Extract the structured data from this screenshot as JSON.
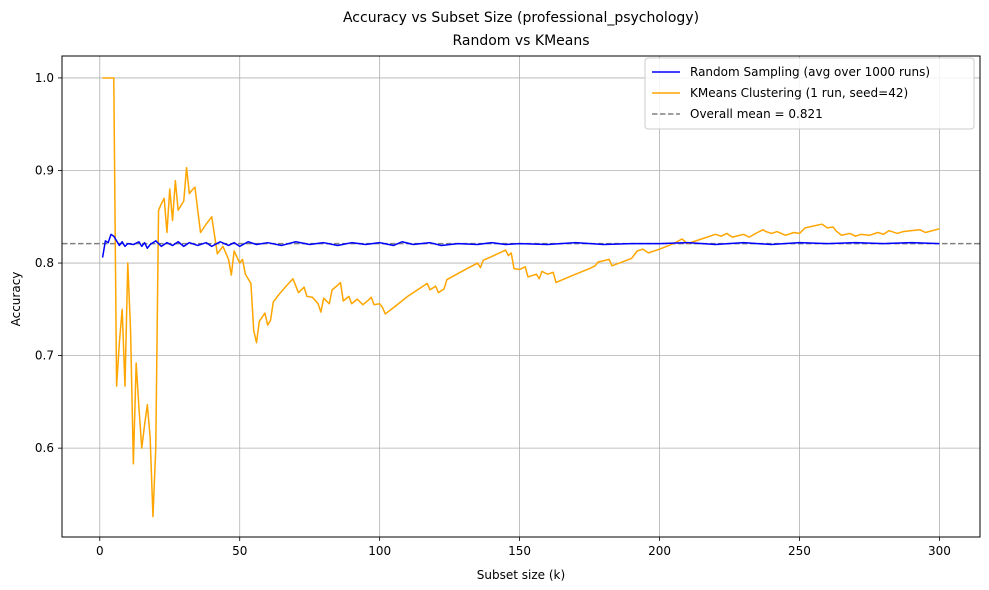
{
  "chart_data": {
    "type": "line",
    "title": "Accuracy vs Subset Size (professional_psychology)",
    "subtitle": "Random vs KMeans",
    "xlabel": "Subset size (k)",
    "ylabel": "Accuracy",
    "xlim": [
      -13.5,
      314.5
    ],
    "ylim": [
      0.504,
      1.0237
    ],
    "xticks": [
      0,
      50,
      100,
      150,
      200,
      250,
      300
    ],
    "yticks": [
      0.6,
      0.7,
      0.8,
      0.9,
      1.0
    ],
    "ytick_labels": [
      "0.6",
      "0.7",
      "0.8",
      "0.9",
      "1.0"
    ],
    "grid": true,
    "legend_position": "top-right",
    "reference_line": {
      "label": "Overall mean = 0.821",
      "y": 0.821,
      "color": "#808080",
      "style": "dashed"
    },
    "series": [
      {
        "name": "Random Sampling (avg over 1000 runs)",
        "color": "#0000ff",
        "points": [
          [
            1,
            0.806
          ],
          [
            2,
            0.824
          ],
          [
            3,
            0.822
          ],
          [
            4,
            0.831
          ],
          [
            5,
            0.829
          ],
          [
            6,
            0.824
          ],
          [
            7,
            0.819
          ],
          [
            8,
            0.823
          ],
          [
            9,
            0.818
          ],
          [
            10,
            0.821
          ],
          [
            12,
            0.82
          ],
          [
            14,
            0.823
          ],
          [
            15,
            0.818
          ],
          [
            16,
            0.822
          ],
          [
            17,
            0.816
          ],
          [
            18,
            0.82
          ],
          [
            20,
            0.824
          ],
          [
            22,
            0.818
          ],
          [
            24,
            0.822
          ],
          [
            26,
            0.819
          ],
          [
            28,
            0.823
          ],
          [
            30,
            0.818
          ],
          [
            32,
            0.822
          ],
          [
            35,
            0.819
          ],
          [
            38,
            0.822
          ],
          [
            40,
            0.818
          ],
          [
            43,
            0.823
          ],
          [
            46,
            0.819
          ],
          [
            48,
            0.822
          ],
          [
            50,
            0.818
          ],
          [
            53,
            0.823
          ],
          [
            56,
            0.82
          ],
          [
            60,
            0.822
          ],
          [
            65,
            0.819
          ],
          [
            70,
            0.823
          ],
          [
            75,
            0.82
          ],
          [
            80,
            0.822
          ],
          [
            85,
            0.819
          ],
          [
            90,
            0.822
          ],
          [
            95,
            0.82
          ],
          [
            100,
            0.822
          ],
          [
            105,
            0.819
          ],
          [
            108,
            0.823
          ],
          [
            112,
            0.82
          ],
          [
            118,
            0.822
          ],
          [
            122,
            0.819
          ],
          [
            128,
            0.821
          ],
          [
            135,
            0.82
          ],
          [
            140,
            0.822
          ],
          [
            145,
            0.82
          ],
          [
            150,
            0.821
          ],
          [
            160,
            0.82
          ],
          [
            170,
            0.822
          ],
          [
            180,
            0.82
          ],
          [
            190,
            0.821
          ],
          [
            200,
            0.821
          ],
          [
            210,
            0.822
          ],
          [
            220,
            0.82
          ],
          [
            230,
            0.822
          ],
          [
            240,
            0.82
          ],
          [
            250,
            0.822
          ],
          [
            260,
            0.821
          ],
          [
            270,
            0.822
          ],
          [
            280,
            0.821
          ],
          [
            290,
            0.822
          ],
          [
            300,
            0.821
          ]
        ]
      },
      {
        "name": "KMeans Clustering (1 run, seed=42)",
        "color": "#ffa500",
        "points": [
          [
            1,
            1.0
          ],
          [
            2,
            1.0
          ],
          [
            3,
            1.0
          ],
          [
            4,
            1.0
          ],
          [
            5,
            1.0
          ],
          [
            6,
            0.667
          ],
          [
            7,
            0.714
          ],
          [
            8,
            0.75
          ],
          [
            9,
            0.667
          ],
          [
            10,
            0.8
          ],
          [
            11,
            0.727
          ],
          [
            12,
            0.583
          ],
          [
            13,
            0.692
          ],
          [
            14,
            0.643
          ],
          [
            15,
            0.6
          ],
          [
            16,
            0.625
          ],
          [
            17,
            0.647
          ],
          [
            18,
            0.611
          ],
          [
            19,
            0.526
          ],
          [
            20,
            0.6
          ],
          [
            21,
            0.857
          ],
          [
            22,
            0.864
          ],
          [
            23,
            0.87
          ],
          [
            24,
            0.833
          ],
          [
            25,
            0.88
          ],
          [
            26,
            0.846
          ],
          [
            27,
            0.889
          ],
          [
            28,
            0.857
          ],
          [
            29,
            0.862
          ],
          [
            30,
            0.867
          ],
          [
            31,
            0.903
          ],
          [
            32,
            0.875
          ],
          [
            33,
            0.879
          ],
          [
            34,
            0.882
          ],
          [
            35,
            0.857
          ],
          [
            36,
            0.833
          ],
          [
            38,
            0.842
          ],
          [
            40,
            0.85
          ],
          [
            42,
            0.81
          ],
          [
            44,
            0.818
          ],
          [
            46,
            0.804
          ],
          [
            47,
            0.787
          ],
          [
            48,
            0.813
          ],
          [
            50,
            0.8
          ],
          [
            51,
            0.804
          ],
          [
            52,
            0.788
          ],
          [
            54,
            0.778
          ],
          [
            55,
            0.727
          ],
          [
            56,
            0.714
          ],
          [
            57,
            0.737
          ],
          [
            59,
            0.746
          ],
          [
            60,
            0.733
          ],
          [
            61,
            0.738
          ],
          [
            62,
            0.758
          ],
          [
            64,
            0.766
          ],
          [
            66,
            0.773
          ],
          [
            69,
            0.783
          ],
          [
            71,
            0.768
          ],
          [
            73,
            0.774
          ],
          [
            74,
            0.764
          ],
          [
            76,
            0.763
          ],
          [
            78,
            0.756
          ],
          [
            79,
            0.747
          ],
          [
            80,
            0.762
          ],
          [
            82,
            0.756
          ],
          [
            83,
            0.771
          ],
          [
            85,
            0.776
          ],
          [
            86,
            0.779
          ],
          [
            87,
            0.759
          ],
          [
            89,
            0.764
          ],
          [
            90,
            0.756
          ],
          [
            92,
            0.761
          ],
          [
            94,
            0.755
          ],
          [
            96,
            0.76
          ],
          [
            97,
            0.763
          ],
          [
            98,
            0.755
          ],
          [
            100,
            0.756
          ],
          [
            101,
            0.752
          ],
          [
            102,
            0.745
          ],
          [
            105,
            0.752
          ],
          [
            110,
            0.764
          ],
          [
            115,
            0.774
          ],
          [
            117,
            0.778
          ],
          [
            118,
            0.771
          ],
          [
            120,
            0.775
          ],
          [
            121,
            0.768
          ],
          [
            123,
            0.772
          ],
          [
            124,
            0.782
          ],
          [
            130,
            0.792
          ],
          [
            135,
            0.8
          ],
          [
            136,
            0.795
          ],
          [
            137,
            0.803
          ],
          [
            140,
            0.807
          ],
          [
            145,
            0.814
          ],
          [
            146,
            0.808
          ],
          [
            147,
            0.811
          ],
          [
            148,
            0.794
          ],
          [
            150,
            0.793
          ],
          [
            152,
            0.796
          ],
          [
            153,
            0.785
          ],
          [
            156,
            0.788
          ],
          [
            157,
            0.783
          ],
          [
            158,
            0.791
          ],
          [
            160,
            0.788
          ],
          [
            162,
            0.79
          ],
          [
            163,
            0.779
          ],
          [
            170,
            0.788
          ],
          [
            175,
            0.794
          ],
          [
            177,
            0.797
          ],
          [
            178,
            0.801
          ],
          [
            182,
            0.804
          ],
          [
            183,
            0.797
          ],
          [
            190,
            0.805
          ],
          [
            192,
            0.813
          ],
          [
            194,
            0.815
          ],
          [
            196,
            0.811
          ],
          [
            200,
            0.815
          ],
          [
            205,
            0.821
          ],
          [
            208,
            0.826
          ],
          [
            210,
            0.821
          ],
          [
            215,
            0.826
          ],
          [
            220,
            0.831
          ],
          [
            222,
            0.829
          ],
          [
            224,
            0.832
          ],
          [
            226,
            0.828
          ],
          [
            230,
            0.831
          ],
          [
            232,
            0.828
          ],
          [
            235,
            0.833
          ],
          [
            237,
            0.836
          ],
          [
            238,
            0.834
          ],
          [
            240,
            0.832
          ],
          [
            242,
            0.834
          ],
          [
            245,
            0.83
          ],
          [
            248,
            0.833
          ],
          [
            250,
            0.832
          ],
          [
            252,
            0.838
          ],
          [
            255,
            0.84
          ],
          [
            258,
            0.842
          ],
          [
            260,
            0.838
          ],
          [
            262,
            0.839
          ],
          [
            263,
            0.835
          ],
          [
            265,
            0.83
          ],
          [
            268,
            0.832
          ],
          [
            270,
            0.829
          ],
          [
            272,
            0.831
          ],
          [
            275,
            0.83
          ],
          [
            278,
            0.833
          ],
          [
            280,
            0.831
          ],
          [
            282,
            0.835
          ],
          [
            285,
            0.832
          ],
          [
            287,
            0.834
          ],
          [
            290,
            0.835
          ],
          [
            293,
            0.836
          ],
          [
            295,
            0.833
          ],
          [
            300,
            0.837
          ]
        ]
      }
    ]
  }
}
